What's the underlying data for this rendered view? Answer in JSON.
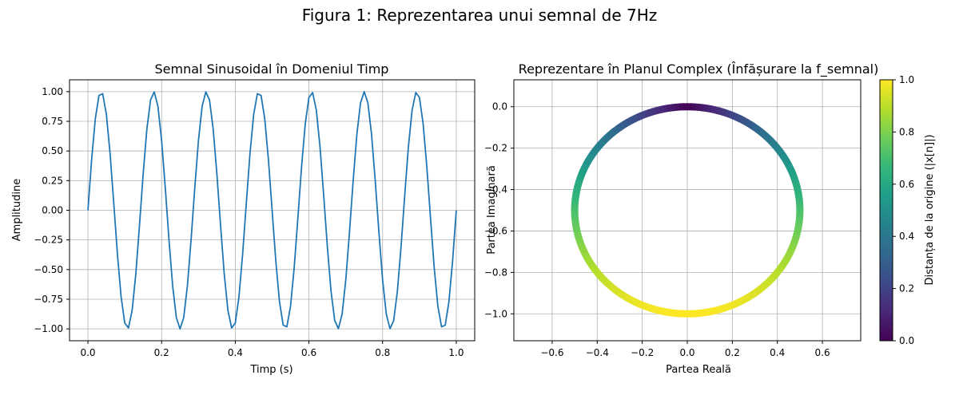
{
  "figure_title": "Figura 1: Reprezentarea unui semnal de 7Hz",
  "chart_data": [
    {
      "type": "line",
      "title": "Semnal Sinusoidal în Domeniul Timp",
      "xlabel": "Timp (s)",
      "ylabel": "Amplitudine",
      "xlim": [
        -0.05,
        1.05
      ],
      "ylim": [
        -1.1,
        1.1
      ],
      "xticks": [
        0.0,
        0.2,
        0.4,
        0.6,
        0.8,
        1.0
      ],
      "xtick_labels": [
        "0.0",
        "0.2",
        "0.4",
        "0.6",
        "0.8",
        "1.0"
      ],
      "yticks": [
        1.0,
        0.75,
        0.5,
        0.25,
        0.0,
        -0.25,
        -0.5,
        -0.75,
        -1.0
      ],
      "ytick_labels": [
        "1.00",
        "0.75",
        "0.50",
        "0.25",
        "0.00",
        "−0.25",
        "−0.50",
        "−0.75",
        "−1.00"
      ],
      "grid": true,
      "color": "#1f77b4",
      "series": [
        {
          "x": [
            0.0,
            0.01,
            0.02,
            0.03,
            0.04,
            0.05,
            0.06,
            0.07,
            0.08,
            0.09,
            0.1,
            0.11,
            0.12,
            0.13,
            0.14,
            0.15,
            0.16,
            0.17,
            0.18,
            0.19,
            0.2,
            0.21,
            0.22,
            0.23,
            0.24,
            0.25,
            0.26,
            0.27,
            0.28,
            0.29,
            0.3,
            0.31,
            0.32,
            0.33,
            0.34,
            0.35,
            0.36,
            0.37,
            0.38,
            0.39,
            0.4,
            0.41,
            0.42,
            0.43,
            0.44,
            0.45,
            0.46,
            0.47,
            0.48,
            0.49,
            0.5,
            0.51,
            0.52,
            0.53,
            0.54,
            0.55,
            0.56,
            0.57,
            0.58,
            0.59,
            0.6,
            0.61,
            0.62,
            0.63,
            0.64,
            0.65,
            0.66,
            0.67,
            0.68,
            0.69,
            0.7,
            0.71,
            0.72,
            0.73,
            0.74,
            0.75,
            0.76,
            0.77,
            0.78,
            0.79,
            0.8,
            0.81,
            0.82,
            0.83,
            0.84,
            0.85,
            0.86,
            0.87,
            0.88,
            0.89,
            0.9,
            0.91,
            0.92,
            0.93,
            0.94,
            0.95,
            0.96,
            0.97,
            0.98,
            0.99,
            1.0
          ],
          "y": [
            0.0,
            0.4258,
            0.7708,
            0.9685,
            0.9823,
            0.809,
            0.4818,
            0.0628,
            -0.3681,
            -0.729,
            -0.9511,
            -0.9921,
            -0.8443,
            -0.5358,
            -0.1253,
            0.309,
            0.6845,
            0.9298,
            0.998,
            0.8763,
            0.5878,
            0.1874,
            -0.2487,
            -0.6374,
            -0.9048,
            -1.0,
            -0.9048,
            -0.6374,
            -0.2487,
            0.1874,
            0.5878,
            0.8763,
            0.998,
            0.9298,
            0.6845,
            0.309,
            -0.1253,
            -0.5358,
            -0.8443,
            -0.9921,
            -0.9511,
            -0.729,
            -0.3681,
            0.0628,
            0.4818,
            0.809,
            0.9823,
            0.9685,
            0.7708,
            0.4258,
            0.0,
            -0.4258,
            -0.7708,
            -0.9685,
            -0.9823,
            -0.809,
            -0.4818,
            -0.0628,
            0.3681,
            0.729,
            0.9511,
            0.9921,
            0.8443,
            0.5358,
            0.1253,
            -0.309,
            -0.6845,
            -0.9298,
            -0.998,
            -0.8763,
            -0.5878,
            -0.1874,
            0.2487,
            0.6374,
            0.9048,
            1.0,
            0.9048,
            0.6374,
            0.2487,
            -0.1874,
            -0.5878,
            -0.8763,
            -0.998,
            -0.9298,
            -0.6845,
            -0.309,
            0.1253,
            0.5358,
            0.8443,
            0.9921,
            0.9511,
            0.729,
            0.3681,
            -0.0628,
            -0.4818,
            -0.809,
            -0.9823,
            -0.9685,
            -0.7708,
            -0.4258,
            -0.0
          ]
        }
      ]
    },
    {
      "type": "scatter",
      "title": "Reprezentare în Planul Complex (Înfășurare la f_semnal)",
      "xlabel": "Partea Reală",
      "ylabel": "Partea Imaginară",
      "xlim": [
        -0.77,
        0.77
      ],
      "ylim": [
        -1.13,
        0.13
      ],
      "aspect": "equal",
      "xticks": [
        -0.6,
        -0.4,
        -0.2,
        0.0,
        0.2,
        0.4,
        0.6
      ],
      "xtick_labels": [
        "−0.6",
        "−0.4",
        "−0.2",
        "0.0",
        "0.2",
        "0.4",
        "0.6"
      ],
      "yticks": [
        0.0,
        -0.2,
        -0.4,
        -0.6,
        -0.8,
        -1.0
      ],
      "ytick_labels": [
        "0.0",
        "−0.2",
        "−0.4",
        "−0.6",
        "−0.8",
        "−1.0"
      ],
      "grid": true,
      "circle": {
        "center": [
          0.0,
          -0.5
        ],
        "radius": 0.5
      },
      "colormap": "viridis",
      "colormap_stops": [
        "#440154",
        "#482878",
        "#3e4989",
        "#31688e",
        "#26828e",
        "#1f9e89",
        "#35b779",
        "#6ece58",
        "#b5de2b",
        "#fde725"
      ],
      "colorbar": {
        "label": "Distanța de la origine (|x[n]|)",
        "range": [
          0.0,
          1.0
        ],
        "ticks": [
          0.0,
          0.2,
          0.4,
          0.6,
          0.8,
          1.0
        ],
        "tick_labels": [
          "0.0",
          "0.2",
          "0.4",
          "0.6",
          "0.8",
          "1.0"
        ]
      }
    }
  ]
}
